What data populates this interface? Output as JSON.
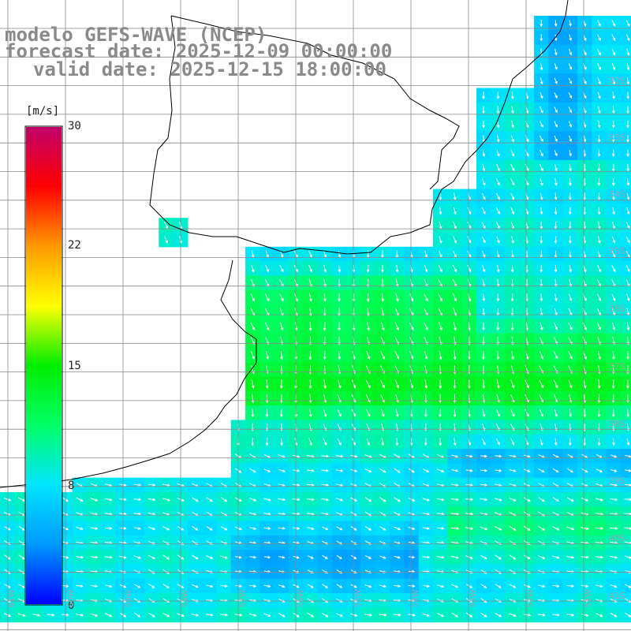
{
  "title": {
    "model": "modelo GEFS-WAVE (NCEP)",
    "forecast": "forecast date: 2025-12-09 00:00:00",
    "valid": "valid date: 2025-12-15 18:00:00"
  },
  "colorbar": {
    "unit": "[m/s]",
    "ticks": [
      "30",
      "22",
      "15",
      "8",
      "0"
    ],
    "min": 0,
    "max": 30,
    "colors": [
      "#0000ff",
      "#0099ff",
      "#00e5ff",
      "#00ff66",
      "#00ee00",
      "#ffff00",
      "#ff9900",
      "#ff0000",
      "#c0006a"
    ]
  },
  "latitude_labels": [
    "32S",
    "33S",
    "34S",
    "35S",
    "36S",
    "37S",
    "38S",
    "39S",
    "40S",
    "41S"
  ],
  "longitude_labels": [
    "61W",
    "60W",
    "59W",
    "58W",
    "57W",
    "56W",
    "55W",
    "54W",
    "53W",
    "52W",
    "51W"
  ],
  "colors": {
    "land": "#ffffff",
    "grid": "#888888",
    "coast": "#000000",
    "title_text": "#8a8a8a"
  }
}
